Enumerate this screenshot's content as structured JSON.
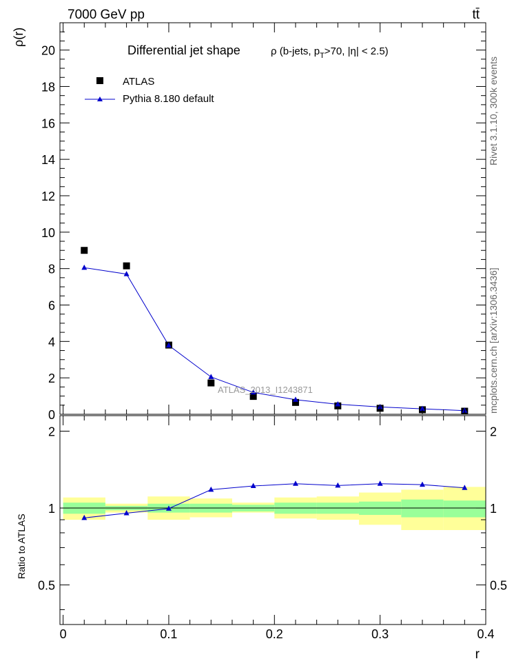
{
  "header": {
    "energy": "7000 GeV pp",
    "process": "tt̄"
  },
  "side": {
    "rivet": "Rivet 3.1.10,  300k events",
    "mcplots": "mcplots.cern.ch [arXiv:1306.3436]"
  },
  "chart_data": [
    {
      "type": "scatter",
      "title_main": "Differential jet shape",
      "title_sub": "ρ (b-jets, p",
      "title_sub_sub": "T",
      "title_sub_tail": ">70, |η| < 2.5)",
      "watermark": "ATLAS_2013_I1243871",
      "ylabel": "ρ(r)",
      "xlim": [
        -0.003,
        0.4
      ],
      "ylim": [
        0,
        21.5
      ],
      "yticks": [
        0,
        2,
        4,
        6,
        8,
        10,
        12,
        14,
        16,
        18,
        20
      ],
      "ytick_labels": [
        "0",
        "2",
        "4",
        "6",
        "8",
        "10",
        "12",
        "14",
        "16",
        "18",
        "20"
      ],
      "legend": {
        "atlas": "ATLAS",
        "pythia": "Pythia 8.180 default"
      },
      "x": [
        0.02,
        0.06,
        0.1,
        0.14,
        0.18,
        0.22,
        0.26,
        0.3,
        0.34,
        0.38
      ],
      "series": [
        {
          "name": "ATLAS",
          "values": [
            9.0,
            8.15,
            3.8,
            1.72,
            0.98,
            0.65,
            0.46,
            0.33,
            0.25,
            0.17
          ]
        },
        {
          "name": "Pythia 8.180 default",
          "values": [
            8.05,
            7.7,
            3.78,
            2.05,
            1.2,
            0.8,
            0.55,
            0.4,
            0.3,
            0.2
          ]
        }
      ]
    },
    {
      "type": "line",
      "ylabel": "Ratio to ATLAS",
      "xlabel": "r",
      "xlim": [
        -0.003,
        0.4
      ],
      "ylim": [
        0.35,
        2.3
      ],
      "yticks": [
        0.5,
        1,
        2
      ],
      "ytick_labels": [
        "0.5",
        "1",
        "2"
      ],
      "xticks": [
        0,
        0.1,
        0.2,
        0.3,
        0.4
      ],
      "xtick_labels": [
        "0",
        "0.1",
        "0.2",
        "0.3",
        "0.4"
      ],
      "bins": [
        {
          "lo": 0.0,
          "hi": 0.04,
          "stat": [
            0.95,
            1.05
          ],
          "total": [
            0.9,
            1.1
          ]
        },
        {
          "lo": 0.04,
          "hi": 0.08,
          "stat": [
            0.98,
            1.02
          ],
          "total": [
            0.96,
            1.04
          ]
        },
        {
          "lo": 0.08,
          "hi": 0.12,
          "stat": [
            0.96,
            1.04
          ],
          "total": [
            0.9,
            1.11
          ]
        },
        {
          "lo": 0.12,
          "hi": 0.16,
          "stat": [
            0.96,
            1.04
          ],
          "total": [
            0.92,
            1.09
          ]
        },
        {
          "lo": 0.16,
          "hi": 0.2,
          "stat": [
            0.97,
            1.03
          ],
          "total": [
            0.96,
            1.05
          ]
        },
        {
          "lo": 0.2,
          "hi": 0.24,
          "stat": [
            0.95,
            1.05
          ],
          "total": [
            0.91,
            1.1
          ]
        },
        {
          "lo": 0.24,
          "hi": 0.28,
          "stat": [
            0.95,
            1.05
          ],
          "total": [
            0.9,
            1.11
          ]
        },
        {
          "lo": 0.28,
          "hi": 0.32,
          "stat": [
            0.94,
            1.06
          ],
          "total": [
            0.86,
            1.15
          ]
        },
        {
          "lo": 0.32,
          "hi": 0.36,
          "stat": [
            0.92,
            1.08
          ],
          "total": [
            0.82,
            1.18
          ]
        },
        {
          "lo": 0.36,
          "hi": 0.4,
          "stat": [
            0.92,
            1.07
          ],
          "total": [
            0.82,
            1.21
          ]
        }
      ],
      "x": [
        0.02,
        0.06,
        0.1,
        0.14,
        0.18,
        0.22,
        0.26,
        0.3,
        0.34,
        0.38
      ],
      "series": [
        {
          "name": "Pythia 8.180 default",
          "values": [
            0.915,
            0.955,
            0.995,
            1.18,
            1.22,
            1.245,
            1.225,
            1.245,
            1.235,
            1.2
          ]
        }
      ]
    }
  ],
  "colors": {
    "mc_line": "#0000cc",
    "data_marker": "#000000",
    "stat_band": "#99ff99",
    "total_band": "#ffff99",
    "side_text": "#666666",
    "watermark": "#999999"
  }
}
